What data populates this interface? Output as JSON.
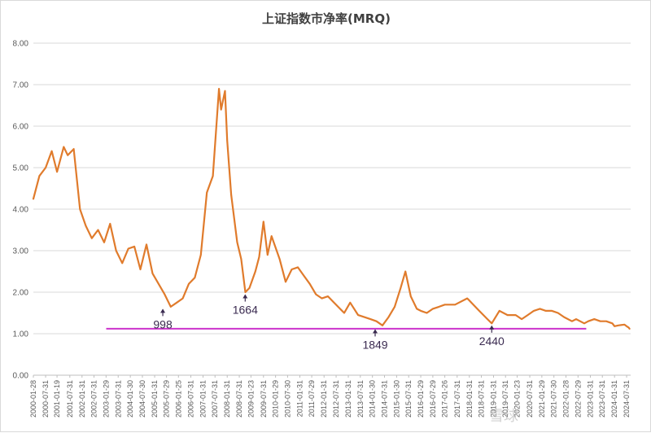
{
  "chart_data": {
    "type": "line",
    "title": "上证指数市净率(MRQ)",
    "ylim": [
      0,
      8
    ],
    "yticks": [
      "0.00",
      "1.00",
      "2.00",
      "3.00",
      "4.00",
      "5.00",
      "6.00",
      "7.00",
      "8.00"
    ],
    "grid": true,
    "legend": "none",
    "line_color": "#E07B2C",
    "reference_line": {
      "value": 1.12,
      "start": "2003-01-31",
      "end": "2022-11-30",
      "color": "#CC33CC"
    },
    "xticks": [
      "2000-01-28",
      "2000-07-31",
      "2001-01-19",
      "2001-07-31",
      "2002-01-31",
      "2002-07-31",
      "2003-01-29",
      "2003-07-31",
      "2004-01-30",
      "2004-07-30",
      "2005-01-31",
      "2005-07-29",
      "2006-01-25",
      "2006-07-31",
      "2007-01-31",
      "2007-07-31",
      "2008-01-31",
      "2008-07-31",
      "2009-01-23",
      "2009-07-31",
      "2010-01-29",
      "2010-07-30",
      "2011-01-31",
      "2011-07-29",
      "2012-01-31",
      "2012-07-31",
      "2013-01-31",
      "2013-07-31",
      "2014-01-30",
      "2014-07-31",
      "2015-01-30",
      "2015-07-31",
      "2016-01-29",
      "2016-07-29",
      "2017-01-26",
      "2017-07-31",
      "2018-01-31",
      "2018-07-31",
      "2019-01-31",
      "2019-07-31",
      "2020-01-23",
      "2020-07-31",
      "2021-01-29",
      "2021-07-30",
      "2022-01-28",
      "2022-07-29",
      "2023-01-31",
      "2023-07-31",
      "2024-01-31",
      "2024-07-31"
    ],
    "series": [
      {
        "x": [
          "2000-01-28",
          "2000-04-28",
          "2000-07-31",
          "2000-10-31",
          "2001-01-19",
          "2001-04-30",
          "2001-06-29",
          "2001-09-28",
          "2001-12-31",
          "2002-03-29",
          "2002-06-28",
          "2002-09-30",
          "2002-12-31",
          "2003-03-31",
          "2003-06-30",
          "2003-09-30",
          "2003-12-31",
          "2004-03-31",
          "2004-06-30",
          "2004-09-30",
          "2004-12-31",
          "2005-03-31",
          "2005-06-30",
          "2005-09-30",
          "2005-12-30",
          "2006-03-31",
          "2006-06-30",
          "2006-09-29",
          "2006-12-29",
          "2007-03-30",
          "2007-06-29",
          "2007-09-28",
          "2007-10-31",
          "2007-12-28",
          "2008-01-31",
          "2008-03-31",
          "2008-06-30",
          "2008-08-29",
          "2008-10-31",
          "2008-12-31",
          "2009-03-31",
          "2009-05-27",
          "2009-07-31",
          "2009-09-30",
          "2009-11-30",
          "2010-03-31",
          "2010-06-30",
          "2010-09-30",
          "2010-12-31",
          "2011-03-31",
          "2011-06-30",
          "2011-09-30",
          "2011-12-30",
          "2012-03-30",
          "2012-06-29",
          "2012-09-28",
          "2012-11-30",
          "2013-02-28",
          "2013-06-28",
          "2013-09-30",
          "2013-12-31",
          "2014-03-31",
          "2014-06-30",
          "2014-09-30",
          "2014-12-31",
          "2015-03-31",
          "2015-06-12",
          "2015-08-31",
          "2015-11-30",
          "2016-01-29",
          "2016-04-29",
          "2016-07-29",
          "2016-10-31",
          "2017-01-26",
          "2017-06-30",
          "2017-12-29",
          "2018-01-31",
          "2018-06-29",
          "2018-10-31",
          "2019-01-04",
          "2019-04-30",
          "2019-08-30",
          "2019-12-31",
          "2020-03-31",
          "2020-06-30",
          "2020-09-30",
          "2020-12-31",
          "2021-03-31",
          "2021-06-30",
          "2021-09-30",
          "2021-12-31",
          "2022-04-29",
          "2022-06-30",
          "2022-10-31",
          "2022-12-30",
          "2023-03-31",
          "2023-06-30",
          "2023-09-28",
          "2023-12-29",
          "2024-01-31",
          "2024-03-29",
          "2024-06-28",
          "2024-07-31",
          "2024-08-30",
          "2024-09-13"
        ],
        "values": [
          4.25,
          4.8,
          5.0,
          5.4,
          4.9,
          5.5,
          5.3,
          5.45,
          4.0,
          3.6,
          3.3,
          3.5,
          3.2,
          3.65,
          3.0,
          2.7,
          3.05,
          3.1,
          2.55,
          3.15,
          2.45,
          2.2,
          1.95,
          1.65,
          1.75,
          1.85,
          2.2,
          2.35,
          2.9,
          4.4,
          4.8,
          6.9,
          6.4,
          6.85,
          5.65,
          4.35,
          3.2,
          2.8,
          2.0,
          2.1,
          2.5,
          2.85,
          3.7,
          2.9,
          3.35,
          2.8,
          2.25,
          2.55,
          2.6,
          2.4,
          2.2,
          1.95,
          1.85,
          1.9,
          1.75,
          1.6,
          1.5,
          1.75,
          1.45,
          1.4,
          1.35,
          1.3,
          1.2,
          1.4,
          1.65,
          2.1,
          2.5,
          1.9,
          1.6,
          1.55,
          1.5,
          1.6,
          1.65,
          1.7,
          1.7,
          1.85,
          1.8,
          1.55,
          1.35,
          1.25,
          1.55,
          1.45,
          1.45,
          1.35,
          1.45,
          1.55,
          1.6,
          1.55,
          1.55,
          1.5,
          1.4,
          1.3,
          1.35,
          1.25,
          1.3,
          1.35,
          1.3,
          1.3,
          1.25,
          1.18,
          1.2,
          1.22,
          1.18,
          1.15,
          1.12
        ]
      }
    ],
    "annotations": [
      {
        "label": "998",
        "x": "2005-06-03",
        "y": 1.62
      },
      {
        "label": "1664",
        "x": "2008-10-28",
        "y": 1.97
      },
      {
        "label": "1849",
        "x": "2014-03-12",
        "y": 1.13
      },
      {
        "label": "2440",
        "x": "2019-01-04",
        "y": 1.22
      }
    ],
    "watermark": "雪球"
  }
}
